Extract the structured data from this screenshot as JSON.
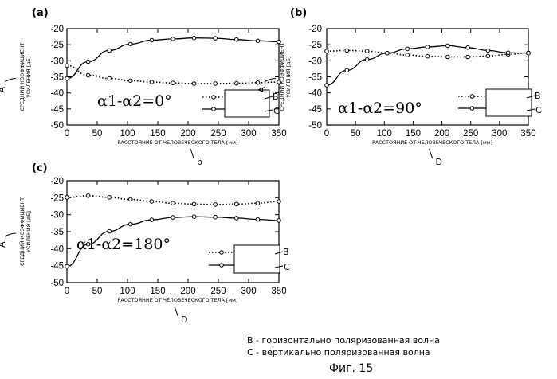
{
  "chart_data": [
    {
      "panel": "(a)",
      "type": "line",
      "formula": "α1-α2=0°",
      "xlabel": "РАССТОЯНИЕ ОТ ЧЕЛОВЕЧЕСКОГО ТЕЛА [мм]",
      "ylabel_line1": "СРЕДНИЙ КОЭФФИЦИЕНТ",
      "ylabel_line2": "УСИЛЕНИЯ [дБ]",
      "x_ticks": [
        "0",
        "50",
        "100",
        "150",
        "200",
        "250",
        "300",
        "350"
      ],
      "y_ticks": [
        "-20",
        "-25",
        "-30",
        "-35",
        "-40",
        "-45",
        "-50"
      ],
      "xlim": [
        0,
        350
      ],
      "ylim": [
        -50,
        -20
      ],
      "grid": false,
      "legend_letters": [
        "B",
        "C"
      ],
      "handwritten_y": "A",
      "handwritten_x": "b",
      "series": [
        {
          "style": "dotted",
          "x": [
            0,
            35,
            70,
            105,
            140,
            175,
            210,
            245,
            280,
            315,
            350
          ],
          "y": [
            -31.5,
            -34.5,
            -35.5,
            -36.2,
            -36.6,
            -36.9,
            -37.1,
            -37.1,
            -37.0,
            -36.8,
            -36.6
          ]
        },
        {
          "style": "solid",
          "x": [
            0,
            35,
            70,
            105,
            140,
            175,
            210,
            245,
            280,
            315,
            350
          ],
          "y": [
            -35.5,
            -30.3,
            -26.8,
            -24.8,
            -23.6,
            -23.2,
            -22.9,
            -23.0,
            -23.4,
            -23.8,
            -24.1
          ]
        }
      ]
    },
    {
      "panel": "(b)",
      "type": "line",
      "formula": "α1-α2=90°",
      "xlabel": "РАССТОЯНИЕ ОТ ЧЕЛОВЕЧЕСКОГО ТЕЛА [мм]",
      "ylabel_line1": "СРЕДНИЙ КОЭФФИЦИЕНТ",
      "ylabel_line2": "УСИЛЕНИЯ [дБ]",
      "x_ticks": [
        "0",
        "50",
        "100",
        "150",
        "200",
        "250",
        "300",
        "350"
      ],
      "y_ticks": [
        "-20",
        "-25",
        "-30",
        "-35",
        "-40",
        "-45",
        "-50"
      ],
      "xlim": [
        0,
        350
      ],
      "ylim": [
        -50,
        -20
      ],
      "grid": false,
      "legend_letters": [
        "B",
        "C"
      ],
      "handwritten_y": "A",
      "handwritten_x": "D",
      "series": [
        {
          "style": "dotted",
          "x": [
            0,
            35,
            70,
            105,
            140,
            175,
            210,
            245,
            280,
            315,
            350
          ],
          "y": [
            -27.0,
            -26.8,
            -27.0,
            -27.6,
            -28.2,
            -28.6,
            -28.8,
            -28.8,
            -28.5,
            -28.0,
            -27.5
          ]
        },
        {
          "style": "solid",
          "x": [
            0,
            35,
            70,
            105,
            140,
            175,
            210,
            245,
            280,
            315,
            350
          ],
          "y": [
            -37.6,
            -33.0,
            -29.6,
            -27.6,
            -26.3,
            -25.7,
            -25.3,
            -25.9,
            -26.8,
            -27.5,
            -27.6
          ]
        }
      ]
    },
    {
      "panel": "(c)",
      "type": "line",
      "formula": "α1-α2=180°",
      "xlabel": "РАССТОЯНИЕ ОТ ЧЕЛОВЕЧЕСКОГО ТЕЛА [мм]",
      "ylabel_line1": "СРЕДНИЙ КОЭФФИЦИЕНТ",
      "ylabel_line2": "УСИЛЕНИЯ [дБ]",
      "x_ticks": [
        "0",
        "50",
        "100",
        "150",
        "200",
        "250",
        "300",
        "350"
      ],
      "y_ticks": [
        "-20",
        "-25",
        "-30",
        "-35",
        "-40",
        "-45",
        "-50"
      ],
      "xlim": [
        0,
        350
      ],
      "ylim": [
        -50,
        -20
      ],
      "grid": false,
      "legend_letters": [
        "B",
        "C"
      ],
      "handwritten_y": "A",
      "handwritten_x": "D",
      "series": [
        {
          "style": "dotted",
          "x": [
            0,
            35,
            70,
            105,
            140,
            175,
            210,
            245,
            280,
            315,
            350
          ],
          "y": [
            -24.9,
            -24.4,
            -24.9,
            -25.5,
            -26.1,
            -26.6,
            -26.9,
            -27.0,
            -26.9,
            -26.6,
            -26.1
          ]
        },
        {
          "style": "solid",
          "x": [
            0,
            35,
            70,
            105,
            140,
            175,
            210,
            245,
            280,
            315,
            350
          ],
          "y": [
            -45.2,
            -38.7,
            -34.9,
            -32.8,
            -31.5,
            -30.8,
            -30.6,
            -30.7,
            -31.0,
            -31.4,
            -31.7
          ]
        }
      ]
    }
  ],
  "legend_note_b": "В - горизонтально поляризованная волна",
  "legend_note_c": "С - вертикально поляризованная волна",
  "figure_caption": "Фиг. 15"
}
